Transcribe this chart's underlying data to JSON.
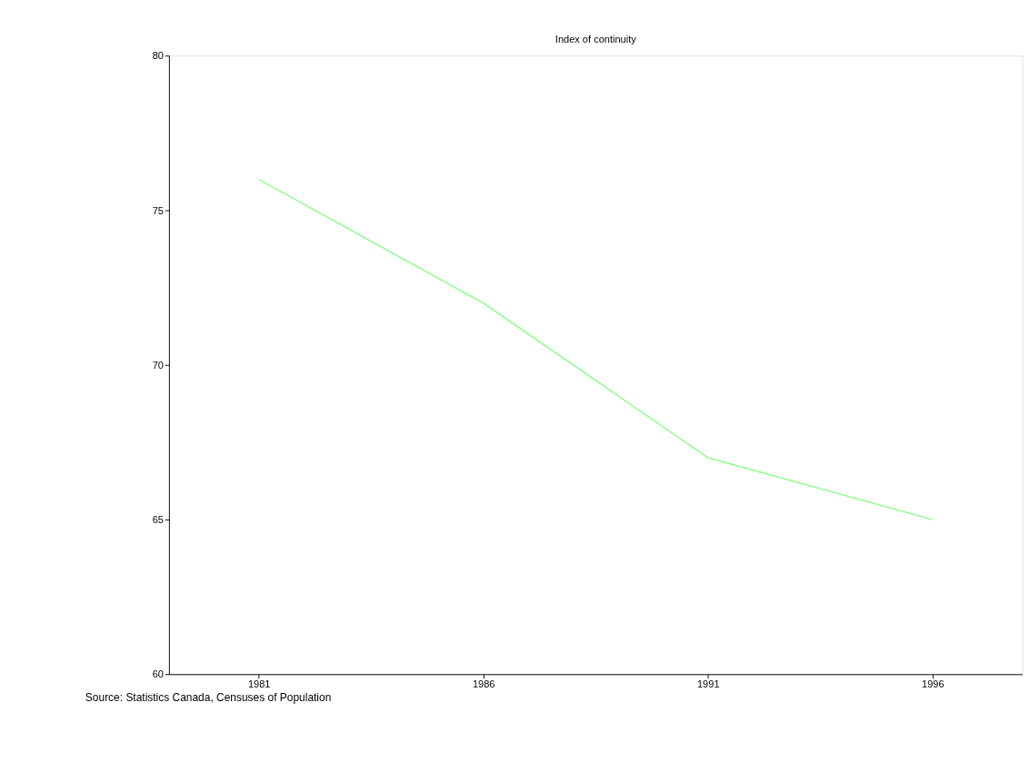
{
  "chart_data": {
    "type": "line",
    "title": "Index of continuity",
    "categories": [
      "1981",
      "1986",
      "1991",
      "1996"
    ],
    "series": [
      {
        "color": "#80ff80",
        "values": [
          76,
          72,
          67,
          65
        ]
      }
    ],
    "ylim": [
      60,
      80
    ],
    "yticks": [
      60,
      65,
      70,
      75,
      80
    ],
    "grid": false,
    "legend": false,
    "marker": "none",
    "line_style": "solid",
    "annotations": [
      "Source: Statistics Canada, Censuses of Population"
    ]
  }
}
